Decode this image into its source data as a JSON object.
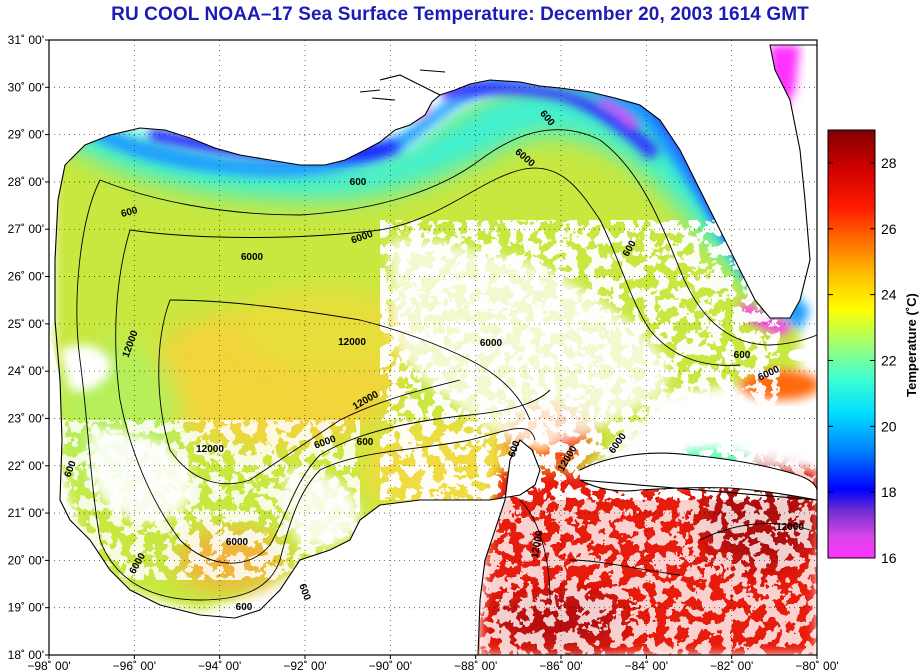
{
  "title": "RU COOL  NOAA–17  Sea Surface Temperature:  December 20, 2003 1614 GMT",
  "lat_labels": [
    "31˚ 00'",
    "30˚ 00'",
    "29˚ 00'",
    "28˚ 00'",
    "27˚ 00'",
    "26˚ 00'",
    "25˚ 00'",
    "24˚ 00'",
    "23˚ 00'",
    "22˚ 00'",
    "21˚ 00'",
    "20˚ 00'",
    "19˚ 00'",
    "18˚ 00'"
  ],
  "lon_labels": [
    "−98˚ 00'",
    "−96˚ 00'",
    "−94˚ 00'",
    "−92˚ 00'",
    "−90˚ 00'",
    "−88˚ 00'",
    "−86˚ 00'",
    "−84˚ 00'",
    "−82˚ 00'",
    "−80˚ 00'"
  ],
  "colorbar": {
    "label": "Temperature (˚C)",
    "ticks": [
      "28",
      "26",
      "24",
      "22",
      "20",
      "18",
      "16"
    ],
    "range": [
      16,
      29
    ]
  },
  "contour_labels": [
    "600",
    "600",
    "600",
    "600",
    "600",
    "600",
    "600",
    "600",
    "600",
    "600",
    "6000",
    "6000",
    "6000",
    "6000",
    "6000",
    "6000",
    "6000",
    "6000",
    "6000",
    "12000",
    "12000",
    "12000",
    "12000",
    "12000",
    "12000",
    "12000"
  ],
  "colors": {
    "title": "#1c1cb4",
    "land": "#ffffff",
    "coast": "#000000",
    "sst_cold": "#ff33ff",
    "sst_warm": "#8b0000"
  }
}
